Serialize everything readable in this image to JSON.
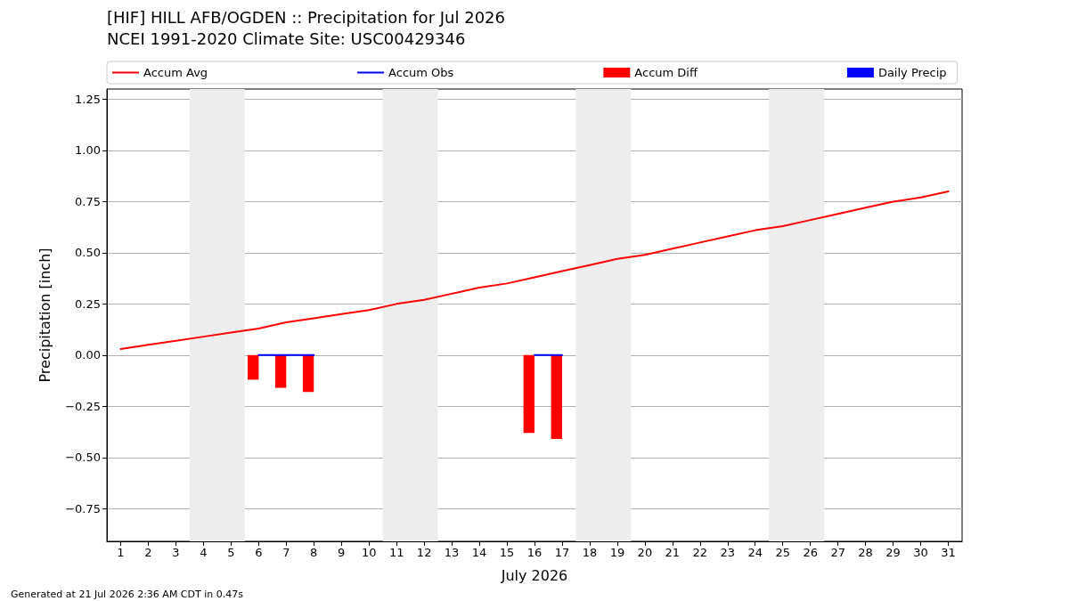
{
  "chart_data": {
    "type": "line",
    "title": "[HIF] HILL AFB/OGDEN :: Precipitation for Jul 2026",
    "subtitle": "NCEI 1991-2020 Climate Site: USC00429346",
    "xlabel": "July 2026",
    "ylabel": "Precipitation [inch]",
    "x": [
      1,
      2,
      3,
      4,
      5,
      6,
      7,
      8,
      9,
      10,
      11,
      12,
      13,
      14,
      15,
      16,
      17,
      18,
      19,
      20,
      21,
      22,
      23,
      24,
      25,
      26,
      27,
      28,
      29,
      30,
      31
    ],
    "series": [
      {
        "name": "Accum Avg",
        "color": "#ff0000",
        "values": [
          0.03,
          0.05,
          0.07,
          0.09,
          0.11,
          0.13,
          0.16,
          0.18,
          0.2,
          0.22,
          0.25,
          0.27,
          0.3,
          0.33,
          0.35,
          0.38,
          0.41,
          0.44,
          0.47,
          0.49,
          0.52,
          0.55,
          0.58,
          0.61,
          0.63,
          0.66,
          0.69,
          0.72,
          0.75,
          0.77,
          0.8
        ]
      },
      {
        "name": "Accum Obs",
        "color": "#0000ff",
        "values": [
          null,
          null,
          null,
          null,
          null,
          0,
          0,
          0,
          null,
          null,
          null,
          null,
          null,
          null,
          null,
          0,
          0,
          null,
          null,
          null,
          null,
          null,
          null,
          null,
          null,
          null,
          null,
          null,
          null,
          null,
          null
        ]
      },
      {
        "name": "Accum Diff",
        "type": "bar",
        "color": "#ff0000",
        "values": [
          null,
          null,
          null,
          null,
          null,
          -0.12,
          -0.16,
          -0.18,
          null,
          null,
          null,
          null,
          null,
          null,
          null,
          -0.38,
          -0.41,
          null,
          null,
          null,
          null,
          null,
          null,
          null,
          null,
          null,
          null,
          null,
          null,
          null,
          null
        ]
      },
      {
        "name": "Daily Precip",
        "type": "bar",
        "color": "#0000ff",
        "values": [
          null,
          null,
          null,
          null,
          null,
          null,
          null,
          null,
          null,
          null,
          null,
          null,
          null,
          null,
          null,
          null,
          null,
          null,
          null,
          null,
          null,
          null,
          null,
          null,
          null,
          null,
          null,
          null,
          null,
          null,
          null
        ]
      }
    ],
    "xlim": [
      0.5,
      31.5
    ],
    "xticks": [
      1,
      2,
      3,
      4,
      5,
      6,
      7,
      8,
      9,
      10,
      11,
      12,
      13,
      14,
      15,
      16,
      17,
      18,
      19,
      20,
      21,
      22,
      23,
      24,
      25,
      26,
      27,
      28,
      29,
      30,
      31
    ],
    "ylim": [
      -0.91,
      1.3
    ],
    "yticks": [
      {
        "value": -0.75,
        "label": "−0.75"
      },
      {
        "value": -0.5,
        "label": "−0.50"
      },
      {
        "value": -0.25,
        "label": "−0.25"
      },
      {
        "value": 0,
        "label": "0.00"
      },
      {
        "value": 0.25,
        "label": "0.25"
      },
      {
        "value": 0.5,
        "label": "0.50"
      },
      {
        "value": 0.75,
        "label": "0.75"
      },
      {
        "value": 1,
        "label": "1.00"
      },
      {
        "value": 1.25,
        "label": "1.25"
      }
    ],
    "bands": [
      {
        "axis": "x",
        "from": 3.5,
        "to": 5.5,
        "color": "#ededed"
      },
      {
        "axis": "x",
        "from": 10.5,
        "to": 12.5,
        "color": "#ededed"
      },
      {
        "axis": "x",
        "from": 17.5,
        "to": 19.5,
        "color": "#ededed"
      },
      {
        "axis": "x",
        "from": 24.5,
        "to": 26.5,
        "color": "#ededed"
      }
    ],
    "grid": "y",
    "legend": "top",
    "marker": "none",
    "line_style": "solid",
    "annotations": [
      "Generated at 21 Jul 2026 2:36 AM CDT in 0.47s"
    ]
  }
}
